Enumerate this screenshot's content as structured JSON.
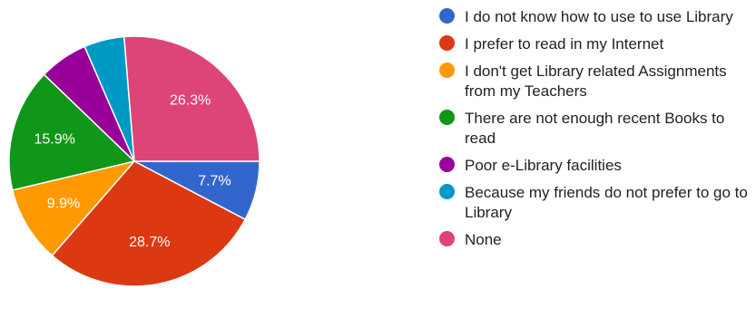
{
  "chart_data": {
    "type": "pie",
    "slices": [
      {
        "label": "I do not know how to use to use Library",
        "value": 7.7,
        "display": "7.7%",
        "color": "#3366cc"
      },
      {
        "label": "I prefer to read in my Internet",
        "value": 28.7,
        "display": "28.7%",
        "color": "#dc3912"
      },
      {
        "label": "I don't get Library related Assignments from my Teachers",
        "value": 9.9,
        "display": "9.9%",
        "color": "#ff9900"
      },
      {
        "label": "There are not enough recent Books to read",
        "value": 15.9,
        "display": "15.9%",
        "color": "#109618"
      },
      {
        "label": "Poor e-Library facilities",
        "value": 6.3,
        "display": "",
        "color": "#990099"
      },
      {
        "label": "Because my friends do not prefer to go to Library",
        "value": 5.2,
        "display": "",
        "color": "#0099c6"
      },
      {
        "label": "None",
        "value": 26.3,
        "display": "26.3%",
        "color": "#dd4477"
      }
    ],
    "legend_position": "right"
  }
}
